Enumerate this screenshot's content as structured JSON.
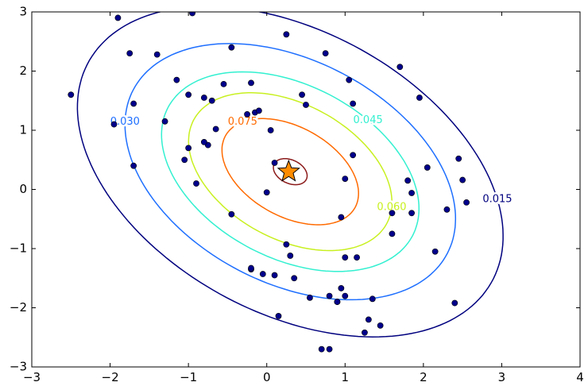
{
  "chart_data": {
    "type": "scatter",
    "title": "",
    "xlabel": "",
    "ylabel": "",
    "xlim": [
      -3,
      4
    ],
    "ylim": [
      -3,
      3
    ],
    "x_ticks": [
      -3,
      -2,
      -1,
      0,
      1,
      2,
      3,
      4
    ],
    "y_ticks": [
      -3,
      -2,
      -1,
      0,
      1,
      2,
      3
    ],
    "x_tick_labels": [
      "−3",
      "−2",
      "−1",
      "0",
      "1",
      "2",
      "3",
      "4"
    ],
    "y_tick_labels": [
      "−3",
      "−2",
      "−1",
      "0",
      "1",
      "2",
      "3"
    ],
    "grid": false,
    "points": {
      "color": "#00008b",
      "x": [
        -2.5,
        -1.9,
        -1.75,
        -1.7,
        -1.95,
        -1.7,
        -1.4,
        -1.3,
        -1.15,
        -1.0,
        -1.0,
        -0.75,
        -0.7,
        -0.8,
        -0.8,
        -0.65,
        -0.9,
        -1.05,
        -0.95,
        -0.55,
        -0.45,
        -0.2,
        -0.2,
        -0.15,
        -0.1,
        -0.25,
        -0.2,
        0.25,
        0.05,
        0.1,
        0.0,
        -0.45,
        -0.05,
        0.45,
        0.5,
        0.75,
        1.05,
        1.1,
        1.1,
        1.0,
        0.95,
        1.15,
        1.7,
        1.95,
        1.8,
        1.85,
        1.85,
        1.6,
        1.6,
        2.05,
        2.45,
        2.5,
        2.55,
        2.3,
        2.15,
        2.4,
        0.95,
        1.0,
        0.9,
        0.9,
        0.8,
        0.8,
        1.25,
        1.45,
        1.3,
        1.35,
        1.0,
        0.25,
        0.3,
        0.35,
        0.1,
        0.15,
        0.55,
        0.7
      ],
      "y": [
        1.6,
        2.9,
        2.3,
        1.45,
        1.1,
        0.4,
        2.28,
        1.15,
        1.85,
        1.6,
        0.7,
        0.75,
        1.5,
        1.55,
        0.8,
        1.02,
        0.1,
        0.5,
        2.98,
        1.78,
        -0.42,
        1.8,
        -1.35,
        1.3,
        1.33,
        1.27,
        -1.33,
        2.62,
        1.0,
        0.45,
        -0.05,
        2.4,
        -1.43,
        1.6,
        1.43,
        2.3,
        1.85,
        1.45,
        0.58,
        0.18,
        -0.47,
        -1.15,
        2.07,
        1.55,
        0.15,
        -0.06,
        -0.4,
        -0.4,
        -0.75,
        0.37,
        0.52,
        0.16,
        -0.22,
        -0.34,
        -1.05,
        -1.92,
        -1.67,
        -1.8,
        -1.9,
        -1.9,
        -1.8,
        -2.7,
        -2.42,
        -2.3,
        -2.2,
        -1.85,
        -1.15,
        -0.93,
        -1.12,
        -1.5,
        -1.45,
        -2.14,
        -1.83,
        -2.7
      ]
    },
    "star": {
      "x": 0.28,
      "y": 0.3,
      "color": "#ff8c00"
    },
    "center": {
      "x": 0.3,
      "y": 0.3
    },
    "contours": [
      {
        "level": 0.09,
        "label": "",
        "color": "#8b1a1a",
        "a": 0.25,
        "b": 0.18
      },
      {
        "level": 0.075,
        "label": "0.075",
        "color": "#ff6a00",
        "a": 1.05,
        "b": 0.68
      },
      {
        "level": 0.06,
        "label": "0.060",
        "color": "#c8f020",
        "a": 1.55,
        "b": 1.03
      },
      {
        "level": 0.045,
        "label": "0.045",
        "color": "#33f0d0",
        "a": 1.95,
        "b": 1.32
      },
      {
        "level": 0.03,
        "label": "0.030",
        "color": "#1e6fff",
        "a": 2.5,
        "b": 1.7
      },
      {
        "level": 0.015,
        "label": "0.015",
        "color": "#00007f",
        "a": 3.25,
        "b": 2.15
      }
    ],
    "rotation_deg": -47
  }
}
